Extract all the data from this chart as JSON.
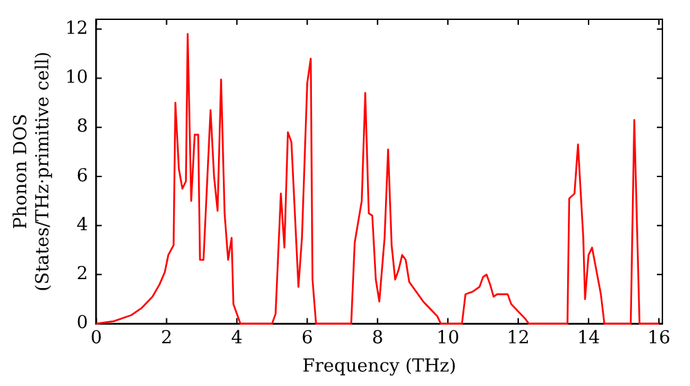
{
  "chart_data": {
    "type": "line",
    "xlabel": "Frequency (THz)",
    "ylabel": "Phonon DOS\n(States/THz·primitive cell)",
    "x": [
      0,
      0.5,
      1,
      1.3,
      1.6,
      1.8,
      1.95,
      2.05,
      2.2,
      2.25,
      2.35,
      2.45,
      2.55,
      2.6,
      2.7,
      2.8,
      2.9,
      2.95,
      3.05,
      3.25,
      3.35,
      3.45,
      3.55,
      3.65,
      3.75,
      3.85,
      3.9,
      4.0,
      4.1,
      5.0,
      5.1,
      5.25,
      5.35,
      5.45,
      5.55,
      5.75,
      5.85,
      6.0,
      6.1,
      6.15,
      6.25,
      7.25,
      7.35,
      7.55,
      7.65,
      7.75,
      7.85,
      7.95,
      8.05,
      8.2,
      8.3,
      8.4,
      8.5,
      8.6,
      8.7,
      8.8,
      8.9,
      9.1,
      9.3,
      9.5,
      9.7,
      9.8,
      10.4,
      10.5,
      10.7,
      10.9,
      11.0,
      11.1,
      11.2,
      11.3,
      11.4,
      11.7,
      11.8,
      12.0,
      12.2,
      12.3,
      13.4,
      13.45,
      13.6,
      13.7,
      13.85,
      13.9,
      14.0,
      14.1,
      14.35,
      14.45,
      15.2,
      15.3,
      15.45,
      16.0
    ],
    "series": [
      {
        "color": "#ff0000",
        "values": [
          0,
          0.1,
          0.35,
          0.65,
          1.1,
          1.6,
          2.1,
          2.8,
          3.2,
          9.0,
          6.3,
          5.5,
          5.8,
          11.8,
          5.0,
          7.7,
          7.7,
          2.6,
          2.6,
          8.7,
          6.0,
          4.6,
          9.95,
          4.5,
          2.6,
          3.5,
          0.8,
          0.4,
          0,
          0,
          0.4,
          5.3,
          3.1,
          7.8,
          7.4,
          1.5,
          3.5,
          9.8,
          10.8,
          1.8,
          0,
          0,
          3.3,
          5.0,
          9.4,
          4.5,
          4.4,
          1.8,
          0.9,
          3.5,
          7.1,
          3.2,
          1.8,
          2.2,
          2.8,
          2.6,
          1.7,
          1.3,
          0.9,
          0.6,
          0.3,
          0,
          0,
          1.2,
          1.3,
          1.5,
          1.9,
          2.0,
          1.6,
          1.1,
          1.2,
          1.2,
          0.8,
          0.5,
          0.2,
          0,
          0,
          5.1,
          5.3,
          7.3,
          3.5,
          1.0,
          2.8,
          3.1,
          1.2,
          0,
          0,
          8.3,
          0,
          0
        ]
      }
    ],
    "xlim": [
      0,
      16.1
    ],
    "xticks": [
      0,
      2,
      4,
      6,
      8,
      10,
      12,
      14,
      16
    ],
    "ylim": [
      0,
      12.4
    ],
    "yticks": [
      0,
      2,
      4,
      6,
      8,
      10,
      12
    ],
    "grid": false,
    "legend": false,
    "marker": "none",
    "line_style": "solid"
  }
}
